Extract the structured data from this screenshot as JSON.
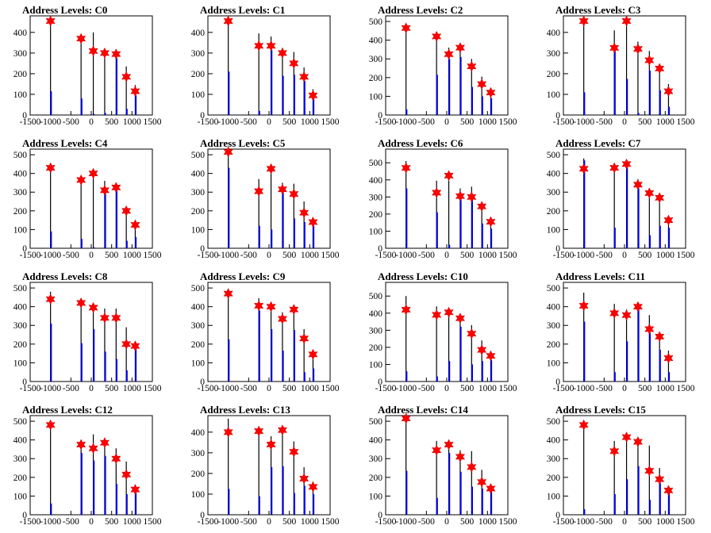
{
  "chart_data": [
    {
      "type": "bar",
      "title": "Address Levels: C0",
      "xlim": [
        -1500,
        1500
      ],
      "ylim": [
        0,
        480
      ],
      "yticks": [
        0,
        100,
        200,
        300,
        400
      ],
      "xticks": [
        -1500,
        -1000,
        -500,
        0,
        500,
        1000,
        1500
      ],
      "peaks": [
        {
          "x": -1000,
          "black": 460,
          "blue": 115,
          "marker": 455
        },
        {
          "x": -250,
          "black": 370,
          "blue": 80,
          "marker": 370
        },
        {
          "x": 50,
          "black": 400,
          "blue": 5,
          "marker": 310
        },
        {
          "x": 330,
          "black": 300,
          "blue": 10,
          "marker": 300
        },
        {
          "x": 610,
          "black": 305,
          "blue": 275,
          "marker": 295
        },
        {
          "x": 860,
          "black": 235,
          "blue": 30,
          "marker": 185
        },
        {
          "x": 1080,
          "black": 145,
          "blue": 95,
          "marker": 115
        }
      ]
    },
    {
      "type": "bar",
      "title": "Address Levels: C1",
      "xlim": [
        -1500,
        1500
      ],
      "ylim": [
        0,
        480
      ],
      "yticks": [
        0,
        100,
        200,
        300,
        400
      ],
      "xticks": [
        -1500,
        -1000,
        -500,
        0,
        500,
        1000,
        1500
      ],
      "peaks": [
        {
          "x": -1000,
          "black": 470,
          "blue": 210,
          "marker": 455
        },
        {
          "x": -250,
          "black": 395,
          "blue": 20,
          "marker": 335
        },
        {
          "x": 50,
          "black": 380,
          "blue": 315,
          "marker": 335
        },
        {
          "x": 330,
          "black": 325,
          "blue": 190,
          "marker": 300
        },
        {
          "x": 610,
          "black": 305,
          "blue": 195,
          "marker": 250
        },
        {
          "x": 860,
          "black": 230,
          "blue": 165,
          "marker": 185
        },
        {
          "x": 1080,
          "black": 125,
          "blue": 80,
          "marker": 95
        }
      ]
    },
    {
      "type": "bar",
      "title": "Address Levels: C2",
      "xlim": [
        -1500,
        1500
      ],
      "ylim": [
        0,
        530
      ],
      "yticks": [
        0,
        100,
        200,
        300,
        400,
        500
      ],
      "xticks": [
        -1500,
        -1000,
        -500,
        0,
        500,
        1000,
        1500
      ],
      "peaks": [
        {
          "x": -1000,
          "black": 475,
          "blue": 30,
          "marker": 465
        },
        {
          "x": -250,
          "black": 415,
          "blue": 215,
          "marker": 420
        },
        {
          "x": 50,
          "black": 360,
          "blue": 300,
          "marker": 325
        },
        {
          "x": 330,
          "black": 365,
          "blue": 310,
          "marker": 360
        },
        {
          "x": 610,
          "black": 300,
          "blue": 150,
          "marker": 260
        },
        {
          "x": 860,
          "black": 205,
          "blue": 100,
          "marker": 165
        },
        {
          "x": 1080,
          "black": 145,
          "blue": 90,
          "marker": 120
        }
      ]
    },
    {
      "type": "bar",
      "title": "Address Levels: C3",
      "xlim": [
        -1500,
        1500
      ],
      "ylim": [
        0,
        480
      ],
      "yticks": [
        0,
        100,
        200,
        300,
        400
      ],
      "xticks": [
        -1500,
        -1000,
        -500,
        0,
        500,
        1000,
        1500
      ],
      "peaks": [
        {
          "x": -1000,
          "black": 450,
          "blue": 110,
          "marker": 455
        },
        {
          "x": -250,
          "black": 410,
          "blue": 320,
          "marker": 325
        },
        {
          "x": 50,
          "black": 460,
          "blue": 175,
          "marker": 455
        },
        {
          "x": 330,
          "black": 355,
          "blue": 10,
          "marker": 320
        },
        {
          "x": 610,
          "black": 310,
          "blue": 215,
          "marker": 265
        },
        {
          "x": 860,
          "black": 230,
          "blue": 120,
          "marker": 225
        },
        {
          "x": 1080,
          "black": 150,
          "blue": 40,
          "marker": 115
        }
      ]
    },
    {
      "type": "bar",
      "title": "Address Levels: C4",
      "xlim": [
        -1500,
        1500
      ],
      "ylim": [
        0,
        530
      ],
      "yticks": [
        0,
        100,
        200,
        300,
        400,
        500
      ],
      "xticks": [
        -1500,
        -1000,
        -500,
        0,
        500,
        1000,
        1500
      ],
      "peaks": [
        {
          "x": -1000,
          "black": 445,
          "blue": 90,
          "marker": 430
        },
        {
          "x": -250,
          "black": 370,
          "blue": 50,
          "marker": 365
        },
        {
          "x": 50,
          "black": 395,
          "blue": 5,
          "marker": 400
        },
        {
          "x": 330,
          "black": 360,
          "blue": 300,
          "marker": 310
        },
        {
          "x": 610,
          "black": 330,
          "blue": 320,
          "marker": 325
        },
        {
          "x": 860,
          "black": 190,
          "blue": 40,
          "marker": 200
        },
        {
          "x": 1080,
          "black": 140,
          "blue": 60,
          "marker": 125
        }
      ]
    },
    {
      "type": "bar",
      "title": "Address Levels: C5",
      "xlim": [
        -1500,
        1500
      ],
      "ylim": [
        0,
        530
      ],
      "yticks": [
        0,
        100,
        200,
        300,
        400,
        500
      ],
      "xticks": [
        -1500,
        -1000,
        -500,
        0,
        500,
        1000,
        1500
      ],
      "peaks": [
        {
          "x": -1000,
          "black": 520,
          "blue": 430,
          "marker": 515
        },
        {
          "x": -250,
          "black": 370,
          "blue": 120,
          "marker": 305
        },
        {
          "x": 50,
          "black": 405,
          "blue": 100,
          "marker": 425
        },
        {
          "x": 330,
          "black": 350,
          "blue": 300,
          "marker": 315
        },
        {
          "x": 610,
          "black": 345,
          "blue": 160,
          "marker": 290
        },
        {
          "x": 860,
          "black": 250,
          "blue": 140,
          "marker": 190
        },
        {
          "x": 1080,
          "black": 145,
          "blue": 120,
          "marker": 140
        }
      ]
    },
    {
      "type": "bar",
      "title": "Address Levels: C6",
      "xlim": [
        -1500,
        1500
      ],
      "ylim": [
        0,
        580
      ],
      "yticks": [
        0,
        100,
        200,
        300,
        400,
        500
      ],
      "xticks": [
        -1500,
        -1000,
        -500,
        0,
        500,
        1000,
        1500
      ],
      "peaks": [
        {
          "x": -1000,
          "black": 510,
          "blue": 350,
          "marker": 470
        },
        {
          "x": -250,
          "black": 395,
          "blue": 210,
          "marker": 325
        },
        {
          "x": 50,
          "black": 395,
          "blue": 20,
          "marker": 425
        },
        {
          "x": 330,
          "black": 350,
          "blue": 300,
          "marker": 305
        },
        {
          "x": 610,
          "black": 360,
          "blue": 295,
          "marker": 300
        },
        {
          "x": 860,
          "black": 250,
          "blue": 145,
          "marker": 245
        },
        {
          "x": 1080,
          "black": 165,
          "blue": 115,
          "marker": 155
        }
      ]
    },
    {
      "type": "bar",
      "title": "Address Levels: C7",
      "xlim": [
        -1500,
        1500
      ],
      "ylim": [
        0,
        530
      ],
      "yticks": [
        0,
        100,
        200,
        300,
        400,
        500
      ],
      "xticks": [
        -1500,
        -1000,
        -500,
        0,
        500,
        1000,
        1500
      ],
      "peaks": [
        {
          "x": -1000,
          "black": 480,
          "blue": 470,
          "marker": 425
        },
        {
          "x": -250,
          "black": 425,
          "blue": 110,
          "marker": 430
        },
        {
          "x": 50,
          "black": 445,
          "blue": 440,
          "marker": 450
        },
        {
          "x": 330,
          "black": 370,
          "blue": 320,
          "marker": 340
        },
        {
          "x": 610,
          "black": 320,
          "blue": 70,
          "marker": 295
        },
        {
          "x": 860,
          "black": 255,
          "blue": 120,
          "marker": 270
        },
        {
          "x": 1080,
          "black": 155,
          "blue": 110,
          "marker": 150
        }
      ]
    },
    {
      "type": "bar",
      "title": "Address Levels: C8",
      "xlim": [
        -1500,
        1500
      ],
      "ylim": [
        0,
        530
      ],
      "yticks": [
        0,
        100,
        200,
        300,
        400,
        500
      ],
      "xticks": [
        -1500,
        -1000,
        -500,
        0,
        500,
        1000,
        1500
      ],
      "peaks": [
        {
          "x": -1000,
          "black": 480,
          "blue": 310,
          "marker": 440
        },
        {
          "x": -250,
          "black": 420,
          "blue": 205,
          "marker": 420
        },
        {
          "x": 50,
          "black": 400,
          "blue": 280,
          "marker": 395
        },
        {
          "x": 330,
          "black": 390,
          "blue": 160,
          "marker": 340
        },
        {
          "x": 610,
          "black": 390,
          "blue": 120,
          "marker": 340
        },
        {
          "x": 860,
          "black": 290,
          "blue": 60,
          "marker": 200
        },
        {
          "x": 1080,
          "black": 200,
          "blue": 180,
          "marker": 190
        }
      ]
    },
    {
      "type": "bar",
      "title": "Address Levels: C9",
      "xlim": [
        -1500,
        1500
      ],
      "ylim": [
        0,
        530
      ],
      "yticks": [
        0,
        100,
        200,
        300,
        400,
        500
      ],
      "xticks": [
        -1500,
        -1000,
        -500,
        0,
        500,
        1000,
        1500
      ],
      "peaks": [
        {
          "x": -1000,
          "black": 480,
          "blue": 225,
          "marker": 470
        },
        {
          "x": -250,
          "black": 445,
          "blue": 380,
          "marker": 405
        },
        {
          "x": 50,
          "black": 415,
          "blue": 280,
          "marker": 400
        },
        {
          "x": 330,
          "black": 370,
          "blue": 165,
          "marker": 335
        },
        {
          "x": 610,
          "black": 360,
          "blue": 275,
          "marker": 385
        },
        {
          "x": 860,
          "black": 280,
          "blue": 50,
          "marker": 230
        },
        {
          "x": 1080,
          "black": 160,
          "blue": 70,
          "marker": 145
        }
      ]
    },
    {
      "type": "bar",
      "title": "Address Levels: C10",
      "xlim": [
        -1500,
        1500
      ],
      "ylim": [
        0,
        580
      ],
      "yticks": [
        0,
        100,
        200,
        300,
        400,
        500
      ],
      "xticks": [
        -1500,
        -1000,
        -500,
        0,
        500,
        1000,
        1500
      ],
      "peaks": [
        {
          "x": -1000,
          "black": 500,
          "blue": 60,
          "marker": 420
        },
        {
          "x": -250,
          "black": 440,
          "blue": 30,
          "marker": 390
        },
        {
          "x": 50,
          "black": 425,
          "blue": 120,
          "marker": 405
        },
        {
          "x": 330,
          "black": 385,
          "blue": 320,
          "marker": 370
        },
        {
          "x": 610,
          "black": 330,
          "blue": 100,
          "marker": 280
        },
        {
          "x": 860,
          "black": 240,
          "blue": 120,
          "marker": 185
        },
        {
          "x": 1080,
          "black": 170,
          "blue": 125,
          "marker": 150
        }
      ]
    },
    {
      "type": "bar",
      "title": "Address Levels: C11",
      "xlim": [
        -1500,
        1500
      ],
      "ylim": [
        0,
        530
      ],
      "yticks": [
        0,
        100,
        200,
        300,
        400,
        500
      ],
      "xticks": [
        -1500,
        -1000,
        -500,
        0,
        500,
        1000,
        1500
      ],
      "peaks": [
        {
          "x": -1000,
          "black": 475,
          "blue": 320,
          "marker": 405
        },
        {
          "x": -250,
          "black": 415,
          "blue": 50,
          "marker": 365
        },
        {
          "x": 50,
          "black": 385,
          "blue": 215,
          "marker": 355
        },
        {
          "x": 330,
          "black": 410,
          "blue": 400,
          "marker": 400
        },
        {
          "x": 610,
          "black": 355,
          "blue": 260,
          "marker": 280
        },
        {
          "x": 860,
          "black": 260,
          "blue": 170,
          "marker": 240
        },
        {
          "x": 1080,
          "black": 165,
          "blue": 50,
          "marker": 125
        }
      ]
    },
    {
      "type": "bar",
      "title": "Address Levels: C12",
      "xlim": [
        -1500,
        1500
      ],
      "ylim": [
        0,
        530
      ],
      "yticks": [
        0,
        100,
        200,
        300,
        400,
        500
      ],
      "xticks": [
        -1500,
        -1000,
        -500,
        0,
        500,
        1000,
        1500
      ],
      "peaks": [
        {
          "x": -1000,
          "black": 480,
          "blue": 60,
          "marker": 480
        },
        {
          "x": -250,
          "black": 400,
          "blue": 330,
          "marker": 375
        },
        {
          "x": 50,
          "black": 430,
          "blue": 290,
          "marker": 355
        },
        {
          "x": 330,
          "black": 390,
          "blue": 315,
          "marker": 385
        },
        {
          "x": 610,
          "black": 355,
          "blue": 165,
          "marker": 300
        },
        {
          "x": 860,
          "black": 285,
          "blue": 110,
          "marker": 215
        },
        {
          "x": 1080,
          "black": 160,
          "blue": 120,
          "marker": 135
        }
      ]
    },
    {
      "type": "bar",
      "title": "Address Levels: C13",
      "xlim": [
        -1500,
        1500
      ],
      "ylim": [
        0,
        480
      ],
      "yticks": [
        0,
        100,
        200,
        300,
        400
      ],
      "xticks": [
        -1500,
        -1000,
        -500,
        0,
        500,
        1000,
        1500
      ],
      "peaks": [
        {
          "x": -1000,
          "black": 465,
          "blue": 125,
          "marker": 400
        },
        {
          "x": -250,
          "black": 405,
          "blue": 90,
          "marker": 405
        },
        {
          "x": 50,
          "black": 380,
          "blue": 230,
          "marker": 340
        },
        {
          "x": 330,
          "black": 405,
          "blue": 235,
          "marker": 410
        },
        {
          "x": 610,
          "black": 355,
          "blue": 105,
          "marker": 305
        },
        {
          "x": 860,
          "black": 230,
          "blue": 140,
          "marker": 175
        },
        {
          "x": 1080,
          "black": 160,
          "blue": 100,
          "marker": 135
        }
      ]
    },
    {
      "type": "bar",
      "title": "Address Levels: C14",
      "xlim": [
        -1500,
        1500
      ],
      "ylim": [
        0,
        530
      ],
      "yticks": [
        0,
        100,
        200,
        300,
        400,
        500
      ],
      "xticks": [
        -1500,
        -1000,
        -500,
        0,
        500,
        1000,
        1500
      ],
      "peaks": [
        {
          "x": -1000,
          "black": 520,
          "blue": 235,
          "marker": 515
        },
        {
          "x": -250,
          "black": 395,
          "blue": 90,
          "marker": 345
        },
        {
          "x": 50,
          "black": 385,
          "blue": 330,
          "marker": 375
        },
        {
          "x": 330,
          "black": 345,
          "blue": 230,
          "marker": 310
        },
        {
          "x": 610,
          "black": 340,
          "blue": 150,
          "marker": 255
        },
        {
          "x": 860,
          "black": 240,
          "blue": 140,
          "marker": 175
        },
        {
          "x": 1080,
          "black": 160,
          "blue": 125,
          "marker": 140
        }
      ]
    },
    {
      "type": "bar",
      "title": "Address Levels: C15",
      "xlim": [
        -1500,
        1500
      ],
      "ylim": [
        0,
        530
      ],
      "yticks": [
        0,
        100,
        200,
        300,
        400,
        500
      ],
      "xticks": [
        -1500,
        -1000,
        -500,
        0,
        500,
        1000,
        1500
      ],
      "peaks": [
        {
          "x": -1000,
          "black": 480,
          "blue": 30,
          "marker": 480
        },
        {
          "x": -250,
          "black": 395,
          "blue": 110,
          "marker": 340
        },
        {
          "x": 50,
          "black": 435,
          "blue": 190,
          "marker": 415
        },
        {
          "x": 330,
          "black": 400,
          "blue": 260,
          "marker": 390
        },
        {
          "x": 610,
          "black": 370,
          "blue": 80,
          "marker": 235
        },
        {
          "x": 860,
          "black": 250,
          "blue": 170,
          "marker": 190
        },
        {
          "x": 1080,
          "black": 150,
          "blue": 120,
          "marker": 130
        }
      ]
    }
  ],
  "colors": {
    "black_bar": "#000000",
    "blue_bar": "#0000ff",
    "marker": "#ff0000",
    "axis": "#000000"
  },
  "marker_shape": "star"
}
